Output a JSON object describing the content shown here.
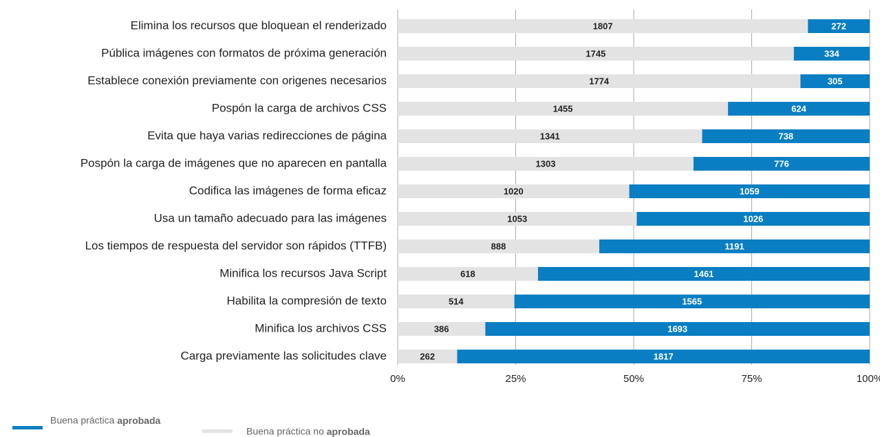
{
  "chart_data": {
    "type": "bar",
    "orientation": "horizontal",
    "stacking": "percent",
    "categories": [
      "Elimina los recursos que bloquean el renderizado",
      "Pública imágenes con formatos de próxima generación",
      "Establece conexión previamente con origenes necesarios",
      "Pospón la carga de archivos CSS",
      "Evita que haya varias redirecciones de página",
      "Pospón la carga de imágenes que no aparecen en pantalla",
      "Codifica las imágenes de forma eficaz",
      "Usa un tamaño adecuado para las imágenes",
      "Los tiempos de respuesta del servidor son rápidos (TTFB)",
      "Minifica los recursos Java Script",
      "Habilita la compresión de texto",
      "Minifica los archivos CSS",
      "Carga previamente las solicitudes clave"
    ],
    "series": [
      {
        "name": "Buena práctica no aprobada",
        "color": "#e3e3e3",
        "label_color": "#222222",
        "values": [
          1807,
          1745,
          1774,
          1455,
          1341,
          1303,
          1020,
          1053,
          888,
          618,
          514,
          386,
          262
        ]
      },
      {
        "name": "Buena práctica aprobada",
        "color": "#0a7ec2",
        "label_color": "#ffffff",
        "values": [
          272,
          334,
          305,
          624,
          738,
          776,
          1059,
          1026,
          1191,
          1461,
          1565,
          1693,
          1817
        ]
      }
    ],
    "xlim": [
      0,
      100
    ],
    "xticks": [
      {
        "value": 0,
        "label": "0%"
      },
      {
        "value": 25,
        "label": "25%"
      },
      {
        "value": 50,
        "label": "50%"
      },
      {
        "value": 75,
        "label": "75%"
      },
      {
        "value": 100,
        "label": "100%"
      }
    ],
    "grid": true,
    "legend": "bottom-left"
  }
}
